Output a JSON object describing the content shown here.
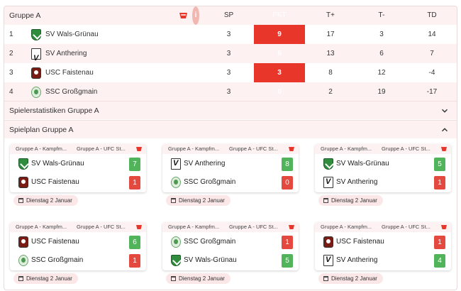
{
  "standings": {
    "group_title": "Gruppe A",
    "headers": {
      "sp": "SP",
      "pkt": "PKT",
      "tplus": "T+",
      "tminus": "T-",
      "td": "TD"
    },
    "rows": [
      {
        "rank": "1",
        "team": "SV Wals-Grünau",
        "crest": "green-shield-crest",
        "sp": "3",
        "pkt": "9",
        "tplus": "17",
        "tminus": "3",
        "td": "14"
      },
      {
        "rank": "2",
        "team": "SV Anthering",
        "crest": "v-letter-crest",
        "sp": "3",
        "pkt": "6",
        "tplus": "13",
        "tminus": "6",
        "td": "7"
      },
      {
        "rank": "3",
        "team": "USC Faistenau",
        "crest": "red-shield-crest",
        "sp": "3",
        "pkt": "3",
        "tplus": "8",
        "tminus": "12",
        "td": "-4"
      },
      {
        "rank": "4",
        "team": "SSC Großgmain",
        "crest": "round-green-crest",
        "sp": "3",
        "pkt": "0",
        "tplus": "2",
        "tminus": "19",
        "td": "-17"
      }
    ]
  },
  "sections": {
    "player_stats": "Spielerstatistiken Gruppe A",
    "schedule": "Spielplan Gruppe A"
  },
  "matches": [
    {
      "cat1": "Gruppe A - Kampfm...",
      "cat2": "Gruppe A - UFC St...",
      "home": "SV Wals-Grünau",
      "home_crest": "green-shield-crest",
      "home_score": "7",
      "away": "USC Faistenau",
      "away_crest": "red-shield-crest",
      "away_score": "1",
      "date": "Dienstag 2 Januar"
    },
    {
      "cat1": "Gruppe A - Kampfm...",
      "cat2": "Gruppe A - UFC St...",
      "home": "SV Anthering",
      "home_crest": "v-letter-crest",
      "home_score": "8",
      "away": "SSC Großgmain",
      "away_crest": "round-green-crest",
      "away_score": "0",
      "date": "Dienstag 2 Januar"
    },
    {
      "cat1": "Gruppe A - Kampfm...",
      "cat2": "Gruppe A - UFC St...",
      "home": "SV Wals-Grünau",
      "home_crest": "green-shield-crest",
      "home_score": "5",
      "away": "SV Anthering",
      "away_crest": "v-letter-crest",
      "away_score": "1",
      "date": "Dienstag 2 Januar"
    },
    {
      "cat1": "Gruppe A - Kampfm...",
      "cat2": "Gruppe A - UFC St...",
      "home": "USC Faistenau",
      "home_crest": "red-shield-crest",
      "home_score": "6",
      "away": "SSC Großgmain",
      "away_crest": "round-green-crest",
      "away_score": "1",
      "date": "Dienstag 2 Januar"
    },
    {
      "cat1": "Gruppe A - Kampfm...",
      "cat2": "Gruppe A - UFC St...",
      "home": "SSC Großgmain",
      "home_crest": "round-green-crest",
      "home_score": "1",
      "away": "SV Wals-Grünau",
      "away_crest": "green-shield-crest",
      "away_score": "5",
      "date": "Dienstag 2 Januar"
    },
    {
      "cat1": "Gruppe A - Kampfm...",
      "cat2": "Gruppe A - UFC St...",
      "home": "USC Faistenau",
      "home_crest": "red-shield-crest",
      "home_score": "1",
      "away": "SV Anthering",
      "away_crest": "v-letter-crest",
      "away_score": "4",
      "date": "Dienstag 2 Januar"
    }
  ],
  "colors": {
    "accent": "#e8362a",
    "win": "#52b45a",
    "lose": "#e4493f",
    "header_bg": "#fdf1f1"
  }
}
